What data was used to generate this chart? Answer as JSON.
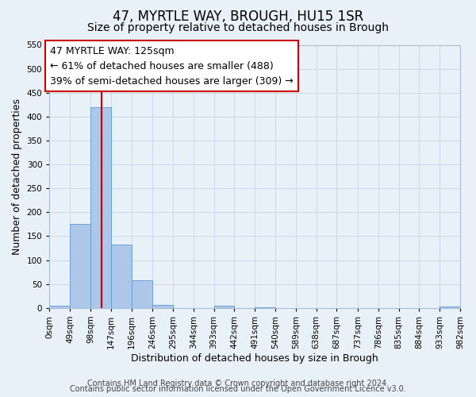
{
  "title": "47, MYRTLE WAY, BROUGH, HU15 1SR",
  "subtitle": "Size of property relative to detached houses in Brough",
  "xlabel": "Distribution of detached houses by size in Brough",
  "ylabel": "Number of detached properties",
  "bin_edges": [
    0,
    49,
    98,
    147,
    196,
    246,
    295,
    344,
    393,
    442,
    491,
    540,
    589,
    638,
    687,
    737,
    786,
    835,
    884,
    933,
    982
  ],
  "bin_labels": [
    "0sqm",
    "49sqm",
    "98sqm",
    "147sqm",
    "196sqm",
    "246sqm",
    "295sqm",
    "344sqm",
    "393sqm",
    "442sqm",
    "491sqm",
    "540sqm",
    "589sqm",
    "638sqm",
    "687sqm",
    "737sqm",
    "786sqm",
    "835sqm",
    "884sqm",
    "933sqm",
    "982sqm"
  ],
  "counts": [
    5,
    175,
    420,
    133,
    57,
    7,
    0,
    0,
    4,
    0,
    2,
    0,
    0,
    0,
    0,
    0,
    0,
    0,
    0,
    3
  ],
  "bar_color": "#aec6e8",
  "bar_edge_color": "#5b9bd5",
  "vline_x": 125,
  "vline_color": "#cc0000",
  "annotation_line1": "47 MYRTLE WAY: 125sqm",
  "annotation_line2": "← 61% of detached houses are smaller (488)",
  "annotation_line3": "39% of semi-detached houses are larger (309) →",
  "ylim": [
    0,
    550
  ],
  "yticks": [
    0,
    50,
    100,
    150,
    200,
    250,
    300,
    350,
    400,
    450,
    500,
    550
  ],
  "grid_color": "#ccd8e8",
  "background_color": "#e8f0f8",
  "footer_line1": "Contains HM Land Registry data © Crown copyright and database right 2024.",
  "footer_line2": "Contains public sector information licensed under the Open Government Licence v3.0.",
  "title_fontsize": 12,
  "subtitle_fontsize": 10,
  "axis_label_fontsize": 9,
  "tick_fontsize": 7.5,
  "annotation_fontsize": 9,
  "footer_fontsize": 7
}
